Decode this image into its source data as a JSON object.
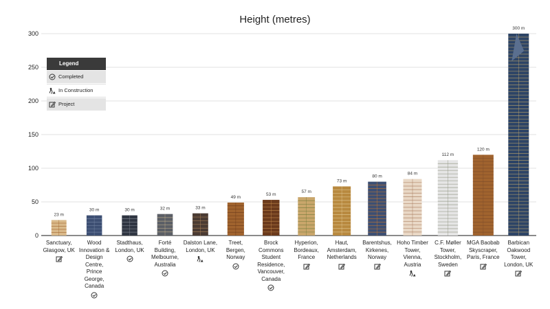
{
  "chart_data": {
    "type": "bar",
    "title": "Height (metres)",
    "ylim": [
      0,
      300
    ],
    "yticks": [
      0,
      50,
      100,
      150,
      200,
      250,
      300
    ],
    "grid": true,
    "legend_position": "top-left",
    "unit_suffix": " m",
    "categories": [
      "Sanctuary, Glasgow, UK",
      "Wood Innovation & Design Centre, Prince George, Canada",
      "Stadthaus, London, UK",
      "Forté Building, Melbourne, Australia",
      "Dalston Lane, London, UK",
      "Treet, Bergen, Norway",
      "Brock Commons Student Residence, Vancouver, Canada",
      "Hyperion, Bordeaux, France",
      "Haut, Amsterdam, Netherlands",
      "Barentshus, Kirkenes, Norway",
      "Hoho Timber Tower, Vienna, Austria",
      "C.F. Møller Tower, Stockholm, Sweden",
      "MGA Baobab Skyscraper, Paris, France",
      "Barbican Oakwood Tower, London, UK"
    ],
    "values": [
      23,
      30,
      30,
      32,
      33,
      49,
      53,
      57,
      73,
      80,
      84,
      112,
      120,
      300
    ],
    "status": [
      "project",
      "completed",
      "completed",
      "completed",
      "construction",
      "completed",
      "completed",
      "project",
      "project",
      "project",
      "construction",
      "project",
      "project",
      "project"
    ],
    "legend": {
      "title": "Legend",
      "items": [
        {
          "key": "completed",
          "label": "Completed"
        },
        {
          "key": "construction",
          "label": "In Construction"
        },
        {
          "key": "project",
          "label": "Project"
        }
      ]
    },
    "icons": {
      "completed": "check-circle-icon",
      "construction": "construction-worker-icon",
      "project": "edit-square-icon"
    }
  },
  "colors": {
    "grid": "#d9d9d9",
    "axis": "#444444",
    "timber_dark": "#6b3a1c",
    "timber_mid": "#a0632e",
    "timber_light": "#d9b98a",
    "glass": "#3d4f73",
    "legend_head": "#3a3a3a"
  }
}
